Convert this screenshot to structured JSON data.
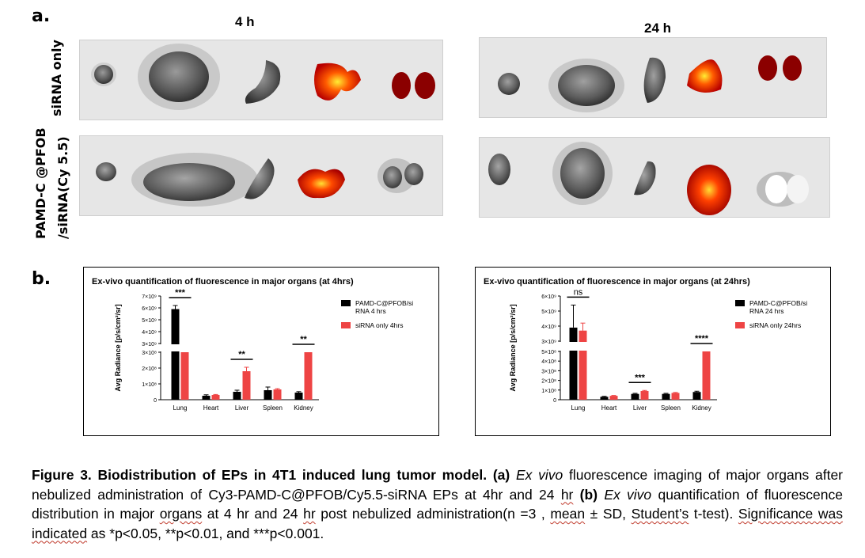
{
  "panel_a": {
    "letter": "a.",
    "time_labels": [
      "4 h",
      "24 h"
    ],
    "row_labels": {
      "top": "siRNA only",
      "bottom_line1": "PAMD-C @PFOB",
      "bottom_line2": "/siRNA(Cy 5.5)"
    }
  },
  "panel_b": {
    "letter": "b."
  },
  "chart_data": [
    {
      "type": "bar",
      "title": "Ex-vivo quantification of fluorescence in major organs (at 4hrs)",
      "ylabel": "Avg Radiance [p/s/cm²/sr]",
      "categories": [
        "Lung",
        "Heart",
        "Liver",
        "Spleen",
        "Kidney"
      ],
      "y_axis_break": true,
      "y_ticks_lower": [
        "0",
        "1×10⁸",
        "2×10⁸",
        "3×10⁸"
      ],
      "y_ticks_upper": [
        "3×10⁹",
        "4×10⁹",
        "5×10⁹",
        "6×10⁹",
        "7×10⁹"
      ],
      "series": [
        {
          "name": "PAMD-C@PFOB/siRNA 4 hrs",
          "legend_line1": "PAMD-C@PFOB/si",
          "legend_line2": "RNA 4 hrs",
          "color": "#000000",
          "values": [
            5900000000,
            25000000,
            50000000,
            60000000,
            45000000
          ],
          "errors": [
            300000000,
            6000000,
            10000000,
            20000000,
            6000000
          ]
        },
        {
          "name": "siRNA only 4hrs",
          "legend_line1": "siRNA only 4hrs",
          "legend_line2": "",
          "color": "#ee4444",
          "values": [
            300000000,
            30000000,
            180000000,
            65000000,
            300000000
          ],
          "errors": [
            0,
            3000000,
            25000000,
            5000000,
            0
          ]
        }
      ],
      "significance": [
        {
          "category": "Lung",
          "label": "***"
        },
        {
          "category": "Liver",
          "label": "**"
        },
        {
          "category": "Kidney",
          "label": "**"
        }
      ],
      "legend_position": "top-right"
    },
    {
      "type": "bar",
      "title": "Ex-vivo quantification of fluorescence in major organs (at 24hrs)",
      "ylabel": "Avg Radiance [p/s/cm²/sr]",
      "categories": [
        "Lung",
        "Heart",
        "Liver",
        "Spleen",
        "Kidney"
      ],
      "y_axis_break": true,
      "y_ticks_lower": [
        "0",
        "1×10⁸",
        "2×10⁸",
        "3×10⁸",
        "4×10⁸",
        "5×10⁸"
      ],
      "y_ticks_upper": [
        "3×10⁹",
        "4×10⁹",
        "5×10⁹",
        "6×10⁹"
      ],
      "series": [
        {
          "name": "PAMD-C@PFOB/siRNA 24 hrs",
          "legend_line1": "PAMD-C@PFOB/si",
          "legend_line2": "RNA 24 hrs",
          "color": "#000000",
          "values": [
            3900000000,
            30000000,
            60000000,
            60000000,
            80000000
          ],
          "errors": [
            1500000000,
            5000000,
            6000000,
            6000000,
            8000000
          ]
        },
        {
          "name": "siRNA only 24hrs",
          "legend_line1": "siRNA only 24hrs",
          "legend_line2": "",
          "color": "#ee4444",
          "values": [
            3700000000,
            40000000,
            90000000,
            70000000,
            500000000
          ],
          "errors": [
            500000000,
            4000000,
            6000000,
            5000000,
            0
          ]
        }
      ],
      "significance": [
        {
          "category": "Lung",
          "label": "ns"
        },
        {
          "category": "Liver",
          "label": "***"
        },
        {
          "category": "Kidney",
          "label": "****"
        }
      ],
      "legend_position": "top-right"
    }
  ],
  "caption": {
    "fig_label": "Figure 3. Biodistribution of EPs in 4T1 induced lung tumor model.",
    "a_tag": "(a)",
    "ex_vivo": "Ex vivo",
    "part_a_text_1": " fluorescence imaging of major organs after nebulized administration of  Cy3-PAMD-C@PFOB/Cy5.5-siRNA EPs at 4hr and 24 ",
    "hr_word": "hr",
    "space": " ",
    "b_tag": "(b)",
    "part_b_text_1": " quantification of fluorescence distribution in major ",
    "organs_word": "organs",
    "part_b_text_2": " at 4 hr and 24 ",
    "part_b_text_3": " post nebulized administration(n =3 , ",
    "mean_word": "mean",
    "part_b_text_4": " ± SD, ",
    "students_word": "Student’s",
    "part_b_text_5": " t-test). ",
    "significance_word": "Significance was indicated",
    "part_b_text_6": " as *p<0.05, **p<0.01, and ***p<0.001."
  }
}
